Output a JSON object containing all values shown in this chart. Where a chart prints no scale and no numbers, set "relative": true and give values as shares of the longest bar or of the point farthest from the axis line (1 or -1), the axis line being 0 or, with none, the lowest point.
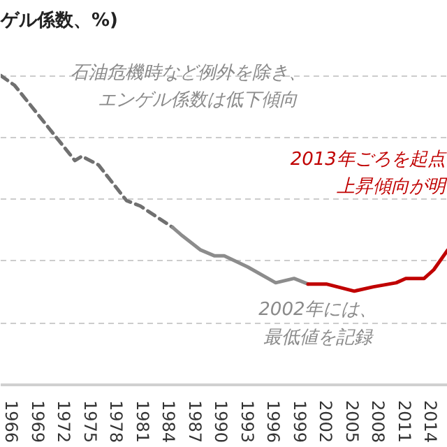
{
  "chart_data": {
    "type": "line",
    "relative": true,
    "title": "ゲル係数、%)",
    "xlim": [
      1964.7,
      2015.9
    ],
    "xticks": [
      1966,
      1969,
      1972,
      1975,
      1978,
      1981,
      1984,
      1987,
      1990,
      1993,
      1996,
      1999,
      2002,
      2005,
      2008,
      2011,
      2014
    ],
    "grid": "y",
    "marker": "none",
    "series": [
      {
        "color": "#707070",
        "line_style": "dashed",
        "x": [
          1964.7,
          1966.3,
          1973.2,
          1974.0,
          1975.9,
          1979.1,
          1980.7,
          1984.4
        ],
        "values": [
          1.0,
          0.968,
          0.725,
          0.739,
          0.711,
          0.596,
          0.578,
          0.509
        ]
      },
      {
        "color": "#8c8c8c",
        "line_style": "solid",
        "x": [
          1984.4,
          1985.5,
          1987.6,
          1989.2,
          1990.3,
          1993.0,
          1996.2,
          1998.3,
          1999.9
        ],
        "values": [
          0.509,
          0.482,
          0.436,
          0.417,
          0.417,
          0.381,
          0.33,
          0.344,
          0.326
        ]
      },
      {
        "color": "#c00000",
        "line_style": "solid",
        "x": [
          1999.9,
          2002.0,
          2005.2,
          2007.4,
          2010.0,
          2011.1,
          2013.2,
          2014.3,
          2015.9
        ],
        "values": [
          0.326,
          0.326,
          0.303,
          0.317,
          0.33,
          0.344,
          0.344,
          0.372,
          0.436
        ]
      }
    ],
    "annotations": [
      "石油危機時など例外を除き、",
      "エンゲル係数は低下傾向",
      "2013年ごろを起点",
      "上昇傾向が明",
      "2002年には、",
      "最低値を記録"
    ]
  }
}
